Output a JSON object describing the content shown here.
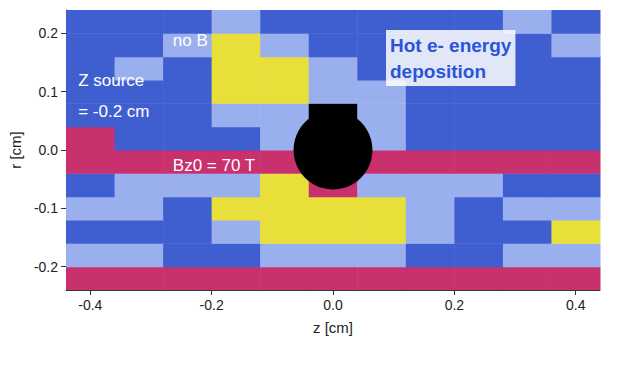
{
  "chart_data": {
    "type": "heatmap",
    "title": "Hot e- energy\ndeposition",
    "x_label": "z [cm]",
    "y_label": "r [cm]",
    "xlim": [
      -0.44,
      0.44
    ],
    "ylim": [
      -0.24,
      0.24
    ],
    "xticks": [
      -0.4,
      -0.2,
      {
        "value": 0,
        "label": "0.0"
      },
      0.2,
      0.4
    ],
    "yticks": [
      -0.2,
      -0.1,
      {
        "value": 0,
        "label": "0.0"
      },
      0.1,
      0.2
    ],
    "grid": false,
    "colors": [
      "#000000",
      "#3f5fd0",
      "#9ab0ee",
      "#e8df3a",
      "#c8306e"
    ],
    "z_edges": [
      -0.44,
      -0.36,
      -0.28,
      -0.2,
      -0.12,
      -0.04,
      0.04,
      0.12,
      0.2,
      0.28,
      0.36,
      0.44
    ],
    "r_edges": [
      -0.24,
      -0.2,
      -0.16,
      -0.12,
      -0.08,
      -0.04,
      0,
      0.04,
      0.08,
      0.12,
      0.16,
      0.2,
      0.24
    ],
    "levels": [
      [
        4,
        4,
        4,
        4,
        4,
        4,
        4,
        4,
        4,
        4,
        4
      ],
      [
        2,
        2,
        1,
        1,
        2,
        2,
        2,
        1,
        1,
        2,
        2
      ],
      [
        1,
        1,
        1,
        2,
        3,
        3,
        3,
        2,
        1,
        1,
        3
      ],
      [
        2,
        2,
        1,
        3,
        3,
        3,
        3,
        2,
        1,
        2,
        2
      ],
      [
        1,
        2,
        2,
        2,
        3,
        4,
        2,
        2,
        2,
        1,
        1
      ],
      [
        4,
        4,
        4,
        4,
        4,
        4,
        4,
        4,
        4,
        4,
        4
      ],
      [
        4,
        1,
        1,
        1,
        2,
        0,
        2,
        1,
        1,
        1,
        1
      ],
      [
        1,
        1,
        1,
        2,
        2,
        0,
        2,
        1,
        1,
        1,
        1
      ],
      [
        1,
        1,
        1,
        3,
        3,
        2,
        2,
        1,
        1,
        1,
        1
      ],
      [
        1,
        2,
        1,
        3,
        3,
        2,
        1,
        1,
        1,
        1,
        1
      ],
      [
        1,
        1,
        2,
        3,
        2,
        1,
        1,
        1,
        1,
        1,
        2
      ],
      [
        1,
        1,
        1,
        2,
        1,
        1,
        1,
        1,
        1,
        2,
        1
      ]
    ],
    "target": {
      "z": 0,
      "r": 0,
      "radius": 0.065,
      "color": "#000000"
    },
    "annotations": [
      {
        "text": "no B",
        "z": -0.264,
        "r": 0.188,
        "color": "#ffffff"
      },
      {
        "text": "Z source",
        "z": -0.42,
        "r": 0.12,
        "color": "#ffffff"
      },
      {
        "text": "= -0.2 cm",
        "z": -0.42,
        "r": 0.066,
        "color": "#ffffff"
      },
      {
        "text": "Bz0 = 70 T",
        "z": -0.264,
        "r": -0.026,
        "color": "#ffffff"
      }
    ]
  }
}
